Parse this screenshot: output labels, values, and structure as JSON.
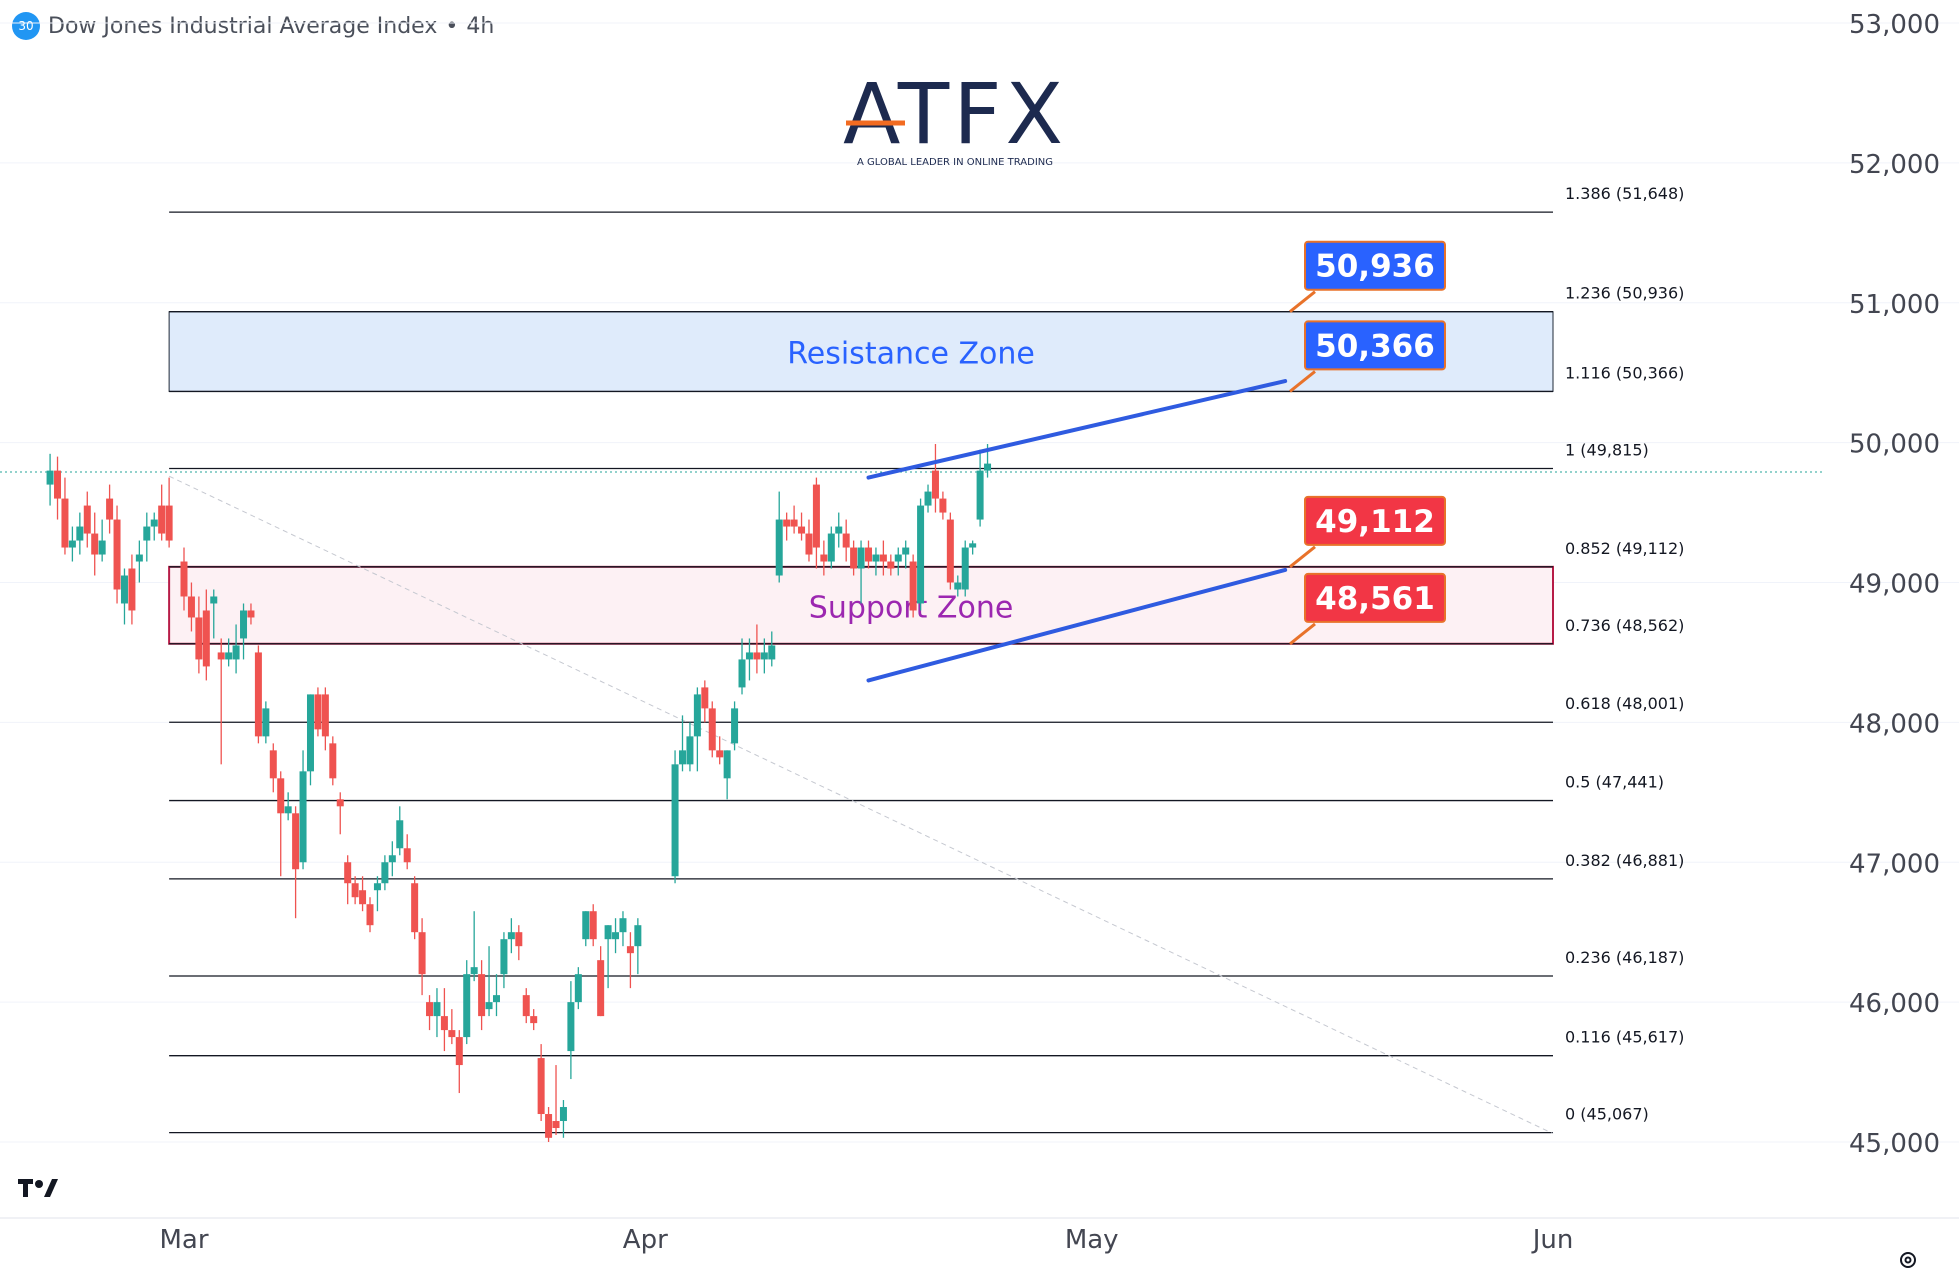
{
  "header": {
    "badge": "30",
    "title": "Dow Jones Industrial Average Index",
    "separator": "•",
    "interval": "4h"
  },
  "brand": {
    "logo_text": "ATFX",
    "tagline": "A GLOBAL LEADER IN ONLINE TRADING",
    "accent": "#f26b21",
    "logo_color": "#1d2a4f"
  },
  "icons": {
    "watermark": "tradingview-logo-icon",
    "settings": "gear-icon"
  },
  "colors": {
    "up": "#26a69a",
    "down": "#ef5350",
    "resistance_fill": "#dbe9fb",
    "resistance_text": "#2962ff",
    "support_border": "#b71c47",
    "support_fill": "#fdf1f4",
    "support_text": "#9c27b0",
    "channel": "#2f5be0",
    "label_blue": "#2962ff",
    "label_red": "#f23645",
    "label_border": "#e8722a"
  },
  "chart_data": {
    "type": "candlestick",
    "title": "Dow Jones Industrial Average Index • 4h",
    "ylim": [
      45000,
      53000
    ],
    "y_ticks": [
      "45,000",
      "46,000",
      "47,000",
      "48,000",
      "49,000",
      "50,000",
      "51,000",
      "52,000",
      "53,000"
    ],
    "y_tick_values": [
      45000,
      46000,
      47000,
      48000,
      49000,
      50000,
      51000,
      52000,
      53000
    ],
    "x_ticks": [
      "Mar",
      "Apr",
      "May",
      "Jun"
    ],
    "x_tick_dates": [
      "2026-03-01",
      "2026-04-01",
      "2026-05-01",
      "2026-06-01"
    ],
    "xlim": [
      "2026-02-22",
      "2026-06-12"
    ],
    "fibonacci": [
      {
        "label": "1.386 (51,648)",
        "price": 51648
      },
      {
        "label": "1.236 (50,936)",
        "price": 50936
      },
      {
        "label": "1.116 (50,366)",
        "price": 50366
      },
      {
        "label": "1 (49,815)",
        "price": 49815
      },
      {
        "label": "0.852 (49,112)",
        "price": 49112
      },
      {
        "label": "0.736 (48,562)",
        "price": 48562
      },
      {
        "label": "0.618 (48,001)",
        "price": 48001
      },
      {
        "label": "0.5 (47,441)",
        "price": 47441
      },
      {
        "label": "0.382 (46,881)",
        "price": 46881
      },
      {
        "label": "0.236 (46,187)",
        "price": 46187
      },
      {
        "label": "0.116 (45,617)",
        "price": 45617
      },
      {
        "label": "0 (45,067)",
        "price": 45067
      }
    ],
    "fib_range_dates": [
      "2026-02-28",
      "2026-06-01"
    ],
    "zones": [
      {
        "label": "Resistance Zone",
        "from": 50366,
        "to": 50936,
        "kind": "resistance"
      },
      {
        "label": "Support Zone",
        "from": 48562,
        "to": 49112,
        "kind": "support"
      }
    ],
    "price_labels": [
      {
        "text": "50,936",
        "price": 50936,
        "color": "blue"
      },
      {
        "text": "50,366",
        "price": 50366,
        "color": "blue"
      },
      {
        "text": "49,112",
        "price": 49112,
        "color": "red"
      },
      {
        "text": "48,561",
        "price": 48561,
        "color": "red"
      }
    ],
    "channel": {
      "upper": [
        {
          "date": "2026-04-16",
          "price": 49750
        },
        {
          "date": "2026-05-14",
          "price": 50440
        }
      ],
      "lower": [
        {
          "date": "2026-04-16",
          "price": 48300
        },
        {
          "date": "2026-05-14",
          "price": 49090
        }
      ]
    },
    "trendline": [
      {
        "date": "2026-02-28",
        "price": 49760
      },
      {
        "date": "2026-06-01",
        "price": 45060
      }
    ],
    "last_price": 49790,
    "candles": [
      {
        "d": "2026-02-20",
        "o": 49700,
        "h": 49920,
        "l": 49550,
        "c": 49800
      },
      {
        "d": "2026-02-20T12",
        "o": 49800,
        "h": 49900,
        "l": 49450,
        "c": 49600
      },
      {
        "d": "2026-02-21",
        "o": 49600,
        "h": 49750,
        "l": 49200,
        "c": 49250
      },
      {
        "d": "2026-02-21T12",
        "o": 49250,
        "h": 49400,
        "l": 49150,
        "c": 49300
      },
      {
        "d": "2026-02-22",
        "o": 49300,
        "h": 49500,
        "l": 49200,
        "c": 49400
      },
      {
        "d": "2026-02-22T12",
        "o": 49550,
        "h": 49650,
        "l": 49250,
        "c": 49350
      },
      {
        "d": "2026-02-23",
        "o": 49350,
        "h": 49500,
        "l": 49050,
        "c": 49200
      },
      {
        "d": "2026-02-23T12",
        "o": 49200,
        "h": 49450,
        "l": 49150,
        "c": 49300
      },
      {
        "d": "2026-02-24",
        "o": 49600,
        "h": 49700,
        "l": 49350,
        "c": 49450
      },
      {
        "d": "2026-02-24T12",
        "o": 49450,
        "h": 49550,
        "l": 48850,
        "c": 48950
      },
      {
        "d": "2026-02-25",
        "o": 48850,
        "h": 49100,
        "l": 48700,
        "c": 49050
      },
      {
        "d": "2026-02-25T12",
        "o": 49100,
        "h": 49200,
        "l": 48700,
        "c": 48800
      },
      {
        "d": "2026-02-26",
        "o": 49150,
        "h": 49300,
        "l": 49000,
        "c": 49200
      },
      {
        "d": "2026-02-26T12",
        "o": 49300,
        "h": 49500,
        "l": 49150,
        "c": 49400
      },
      {
        "d": "2026-02-27",
        "o": 49400,
        "h": 49500,
        "l": 49300,
        "c": 49450
      },
      {
        "d": "2026-02-27T12",
        "o": 49550,
        "h": 49700,
        "l": 49300,
        "c": 49350
      },
      {
        "d": "2026-02-28",
        "o": 49550,
        "h": 49750,
        "l": 49250,
        "c": 49300
      },
      {
        "d": "2026-03-01",
        "o": 49150,
        "h": 49250,
        "l": 48800,
        "c": 48900
      },
      {
        "d": "2026-03-01T12",
        "o": 48900,
        "h": 49000,
        "l": 48650,
        "c": 48750
      },
      {
        "d": "2026-03-02",
        "o": 48750,
        "h": 48900,
        "l": 48350,
        "c": 48450
      },
      {
        "d": "2026-03-02T12",
        "o": 48800,
        "h": 48950,
        "l": 48300,
        "c": 48400
      },
      {
        "d": "2026-03-03",
        "o": 48850,
        "h": 48950,
        "l": 48600,
        "c": 48900
      },
      {
        "d": "2026-03-03T12",
        "o": 48500,
        "h": 48600,
        "l": 47700,
        "c": 48450
      },
      {
        "d": "2026-03-04",
        "o": 48450,
        "h": 48600,
        "l": 48400,
        "c": 48500
      },
      {
        "d": "2026-03-04T12",
        "o": 48450,
        "h": 48700,
        "l": 48350,
        "c": 48550
      },
      {
        "d": "2026-03-05",
        "o": 48600,
        "h": 48850,
        "l": 48450,
        "c": 48800
      },
      {
        "d": "2026-03-05T12",
        "o": 48800,
        "h": 48850,
        "l": 48700,
        "c": 48750
      },
      {
        "d": "2026-03-06",
        "o": 48500,
        "h": 48550,
        "l": 47850,
        "c": 47900
      },
      {
        "d": "2026-03-06T12",
        "o": 47900,
        "h": 48150,
        "l": 47850,
        "c": 48100
      },
      {
        "d": "2026-03-07",
        "o": 47800,
        "h": 47850,
        "l": 47500,
        "c": 47600
      },
      {
        "d": "2026-03-07T12",
        "o": 47600,
        "h": 47650,
        "l": 46900,
        "c": 47350
      },
      {
        "d": "2026-03-08",
        "o": 47350,
        "h": 47500,
        "l": 47300,
        "c": 47400
      },
      {
        "d": "2026-03-08T12",
        "o": 47350,
        "h": 47400,
        "l": 46600,
        "c": 46950
      },
      {
        "d": "2026-03-09",
        "o": 47000,
        "h": 47800,
        "l": 46950,
        "c": 47650
      },
      {
        "d": "2026-03-09T12",
        "o": 47650,
        "h": 48200,
        "l": 47550,
        "c": 48200
      },
      {
        "d": "2026-03-10",
        "o": 48200,
        "h": 48250,
        "l": 47900,
        "c": 47950
      },
      {
        "d": "2026-03-10T12",
        "o": 48200,
        "h": 48250,
        "l": 47800,
        "c": 47900
      },
      {
        "d": "2026-03-11",
        "o": 47850,
        "h": 47900,
        "l": 47550,
        "c": 47600
      },
      {
        "d": "2026-03-11T12",
        "o": 47450,
        "h": 47500,
        "l": 47200,
        "c": 47400
      },
      {
        "d": "2026-03-12",
        "o": 47000,
        "h": 47050,
        "l": 46700,
        "c": 46850
      },
      {
        "d": "2026-03-12T12",
        "o": 46850,
        "h": 46900,
        "l": 46700,
        "c": 46750
      },
      {
        "d": "2026-03-13",
        "o": 46800,
        "h": 46900,
        "l": 46650,
        "c": 46700
      },
      {
        "d": "2026-03-13T12",
        "o": 46700,
        "h": 46750,
        "l": 46500,
        "c": 46550
      },
      {
        "d": "2026-03-14",
        "o": 46800,
        "h": 46900,
        "l": 46650,
        "c": 46850
      },
      {
        "d": "2026-03-14T12",
        "o": 46850,
        "h": 47050,
        "l": 46800,
        "c": 47000
      },
      {
        "d": "2026-03-15",
        "o": 47000,
        "h": 47150,
        "l": 46900,
        "c": 47050
      },
      {
        "d": "2026-03-15T12",
        "o": 47100,
        "h": 47400,
        "l": 47050,
        "c": 47300
      },
      {
        "d": "2026-03-16",
        "o": 47100,
        "h": 47200,
        "l": 46950,
        "c": 47000
      },
      {
        "d": "2026-03-16T12",
        "o": 46850,
        "h": 46900,
        "l": 46450,
        "c": 46500
      },
      {
        "d": "2026-03-17",
        "o": 46500,
        "h": 46600,
        "l": 46050,
        "c": 46200
      },
      {
        "d": "2026-03-17T12",
        "o": 46000,
        "h": 46050,
        "l": 45800,
        "c": 45900
      },
      {
        "d": "2026-03-18",
        "o": 45900,
        "h": 46100,
        "l": 45750,
        "c": 46000
      },
      {
        "d": "2026-03-18T12",
        "o": 45900,
        "h": 46100,
        "l": 45650,
        "c": 45800
      },
      {
        "d": "2026-03-19",
        "o": 45800,
        "h": 45950,
        "l": 45700,
        "c": 45750
      },
      {
        "d": "2026-03-19T12",
        "o": 45750,
        "h": 45800,
        "l": 45350,
        "c": 45550
      },
      {
        "d": "2026-03-20",
        "o": 45750,
        "h": 46300,
        "l": 45700,
        "c": 46200
      },
      {
        "d": "2026-03-20T12",
        "o": 46200,
        "h": 46650,
        "l": 46150,
        "c": 46250
      },
      {
        "d": "2026-03-21",
        "o": 46200,
        "h": 46300,
        "l": 45800,
        "c": 45900
      },
      {
        "d": "2026-03-21T12",
        "o": 45950,
        "h": 46400,
        "l": 45900,
        "c": 46000
      },
      {
        "d": "2026-03-22",
        "o": 46000,
        "h": 46200,
        "l": 45900,
        "c": 46050
      },
      {
        "d": "2026-03-22T12",
        "o": 46200,
        "h": 46500,
        "l": 46100,
        "c": 46450
      },
      {
        "d": "2026-03-23",
        "o": 46450,
        "h": 46600,
        "l": 46350,
        "c": 46500
      },
      {
        "d": "2026-03-23T12",
        "o": 46500,
        "h": 46550,
        "l": 46300,
        "c": 46400
      },
      {
        "d": "2026-03-24",
        "o": 46050,
        "h": 46100,
        "l": 45850,
        "c": 45900
      },
      {
        "d": "2026-03-24T12",
        "o": 45900,
        "h": 45950,
        "l": 45800,
        "c": 45850
      },
      {
        "d": "2026-03-25",
        "o": 45600,
        "h": 45700,
        "l": 45150,
        "c": 45200
      },
      {
        "d": "2026-03-25T12",
        "o": 45200,
        "h": 45250,
        "l": 45000,
        "c": 45030
      },
      {
        "d": "2026-03-26",
        "o": 45150,
        "h": 45550,
        "l": 45050,
        "c": 45100
      },
      {
        "d": "2026-03-26T12",
        "o": 45150,
        "h": 45300,
        "l": 45030,
        "c": 45250
      },
      {
        "d": "2026-03-27",
        "o": 45650,
        "h": 46150,
        "l": 45450,
        "c": 46000
      },
      {
        "d": "2026-03-27T12",
        "o": 46000,
        "h": 46250,
        "l": 45950,
        "c": 46200
      },
      {
        "d": "2026-03-28",
        "o": 46450,
        "h": 46650,
        "l": 46400,
        "c": 46650
      },
      {
        "d": "2026-03-28T12",
        "o": 46650,
        "h": 46700,
        "l": 46400,
        "c": 46450
      },
      {
        "d": "2026-03-29",
        "o": 46300,
        "h": 46400,
        "l": 45900,
        "c": 45900
      },
      {
        "d": "2026-03-29T12",
        "o": 46450,
        "h": 46550,
        "l": 46100,
        "c": 46550
      },
      {
        "d": "2026-03-30",
        "o": 46450,
        "h": 46600,
        "l": 46350,
        "c": 46500
      },
      {
        "d": "2026-03-30T12",
        "o": 46500,
        "h": 46650,
        "l": 46400,
        "c": 46600
      },
      {
        "d": "2026-03-31",
        "o": 46400,
        "h": 46500,
        "l": 46100,
        "c": 46350
      },
      {
        "d": "2026-03-31T12",
        "o": 46400,
        "h": 46600,
        "l": 46200,
        "c": 46550
      },
      {
        "d": "2026-04-03",
        "o": 46900,
        "h": 47800,
        "l": 46850,
        "c": 47700
      },
      {
        "d": "2026-04-03T12",
        "o": 47700,
        "h": 48050,
        "l": 47650,
        "c": 47800
      },
      {
        "d": "2026-04-04",
        "o": 47700,
        "h": 48000,
        "l": 47650,
        "c": 47900
      },
      {
        "d": "2026-04-04T12",
        "o": 47900,
        "h": 48250,
        "l": 47650,
        "c": 48200
      },
      {
        "d": "2026-04-05",
        "o": 48250,
        "h": 48300,
        "l": 48000,
        "c": 48100
      },
      {
        "d": "2026-04-05T12",
        "o": 48100,
        "h": 48150,
        "l": 47750,
        "c": 47800
      },
      {
        "d": "2026-04-06",
        "o": 47800,
        "h": 47900,
        "l": 47700,
        "c": 47750
      },
      {
        "d": "2026-04-06T12",
        "o": 47600,
        "h": 47800,
        "l": 47450,
        "c": 47800
      },
      {
        "d": "2026-04-07",
        "o": 47850,
        "h": 48150,
        "l": 47800,
        "c": 48100
      },
      {
        "d": "2026-04-07T12",
        "o": 48250,
        "h": 48600,
        "l": 48200,
        "c": 48450
      },
      {
        "d": "2026-04-08",
        "o": 48450,
        "h": 48600,
        "l": 48300,
        "c": 48500
      },
      {
        "d": "2026-04-08T12",
        "o": 48500,
        "h": 48700,
        "l": 48350,
        "c": 48450
      },
      {
        "d": "2026-04-09",
        "o": 48450,
        "h": 48600,
        "l": 48350,
        "c": 48500
      },
      {
        "d": "2026-04-09T12",
        "o": 48450,
        "h": 48650,
        "l": 48400,
        "c": 48550
      },
      {
        "d": "2026-04-10",
        "o": 49050,
        "h": 49650,
        "l": 49000,
        "c": 49450
      },
      {
        "d": "2026-04-10T12",
        "o": 49450,
        "h": 49500,
        "l": 49300,
        "c": 49400
      },
      {
        "d": "2026-04-11",
        "o": 49450,
        "h": 49550,
        "l": 49350,
        "c": 49400
      },
      {
        "d": "2026-04-11T12",
        "o": 49400,
        "h": 49500,
        "l": 49300,
        "c": 49350
      },
      {
        "d": "2026-04-12",
        "o": 49350,
        "h": 49450,
        "l": 49150,
        "c": 49200
      },
      {
        "d": "2026-04-12T12",
        "o": 49700,
        "h": 49750,
        "l": 49100,
        "c": 49250
      },
      {
        "d": "2026-04-13",
        "o": 49200,
        "h": 49300,
        "l": 49050,
        "c": 49150
      },
      {
        "d": "2026-04-13T12",
        "o": 49150,
        "h": 49400,
        "l": 49100,
        "c": 49350
      },
      {
        "d": "2026-04-14",
        "o": 49350,
        "h": 49500,
        "l": 49250,
        "c": 49400
      },
      {
        "d": "2026-04-14T12",
        "o": 49350,
        "h": 49450,
        "l": 49150,
        "c": 49250
      },
      {
        "d": "2026-04-15",
        "o": 49250,
        "h": 49300,
        "l": 49050,
        "c": 49100
      },
      {
        "d": "2026-04-15T12",
        "o": 49100,
        "h": 49300,
        "l": 48850,
        "c": 49250
      },
      {
        "d": "2026-04-16",
        "o": 49250,
        "h": 49300,
        "l": 49100,
        "c": 49150
      },
      {
        "d": "2026-04-16T12",
        "o": 49150,
        "h": 49250,
        "l": 49050,
        "c": 49200
      },
      {
        "d": "2026-04-17",
        "o": 49200,
        "h": 49300,
        "l": 49050,
        "c": 49150
      },
      {
        "d": "2026-04-17T12",
        "o": 49150,
        "h": 49200,
        "l": 49050,
        "c": 49100
      },
      {
        "d": "2026-04-18",
        "o": 49150,
        "h": 49250,
        "l": 49050,
        "c": 49200
      },
      {
        "d": "2026-04-18T12",
        "o": 49200,
        "h": 49300,
        "l": 49100,
        "c": 49250
      },
      {
        "d": "2026-04-19",
        "o": 49150,
        "h": 49200,
        "l": 48750,
        "c": 48800
      },
      {
        "d": "2026-04-19T12",
        "o": 48850,
        "h": 49600,
        "l": 48800,
        "c": 49550
      },
      {
        "d": "2026-04-20",
        "o": 49550,
        "h": 49700,
        "l": 49500,
        "c": 49650
      },
      {
        "d": "2026-04-20T12",
        "o": 49800,
        "h": 49990,
        "l": 49500,
        "c": 49600
      },
      {
        "d": "2026-04-21",
        "o": 49600,
        "h": 49650,
        "l": 49450,
        "c": 49500
      },
      {
        "d": "2026-04-21T12",
        "o": 49450,
        "h": 49500,
        "l": 48950,
        "c": 49000
      },
      {
        "d": "2026-04-22",
        "o": 48950,
        "h": 49050,
        "l": 48900,
        "c": 49000
      },
      {
        "d": "2026-04-22T12",
        "o": 48950,
        "h": 49300,
        "l": 48900,
        "c": 49250
      },
      {
        "d": "2026-04-23",
        "o": 49250,
        "h": 49300,
        "l": 49200,
        "c": 49280
      },
      {
        "d": "2026-04-23T12",
        "o": 49450,
        "h": 49950,
        "l": 49400,
        "c": 49800
      },
      {
        "d": "2026-04-24",
        "o": 49800,
        "h": 49990,
        "l": 49750,
        "c": 49850
      }
    ]
  }
}
